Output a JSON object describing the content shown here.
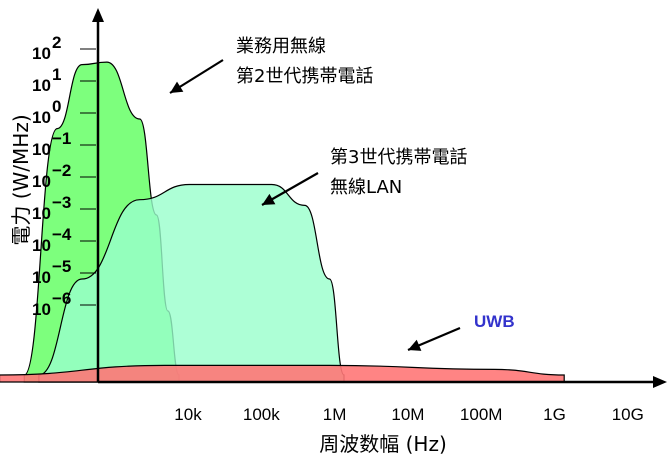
{
  "chart_data": {
    "type": "area",
    "xlabel": "周波数幅 (Hz)",
    "ylabel": "電力 (W/MHz)",
    "x_ticks": [
      "10k",
      "100k",
      "1M",
      "10M",
      "100M",
      "1G",
      "10G"
    ],
    "y_ticks": [
      {
        "base": "10",
        "exp": "2"
      },
      {
        "base": "10",
        "exp": "1"
      },
      {
        "base": "10",
        "exp": "0"
      },
      {
        "base": "10",
        "exp": "−1"
      },
      {
        "base": "10",
        "exp": "−2"
      },
      {
        "base": "10",
        "exp": "−3"
      },
      {
        "base": "10",
        "exp": "−4"
      },
      {
        "base": "10",
        "exp": "−5"
      },
      {
        "base": "10",
        "exp": "−6"
      }
    ],
    "x_scale": "log",
    "y_scale": "log",
    "grid": false,
    "annotations": [
      {
        "lines": [
          "業務用無線",
          "第2世代携帯電話"
        ],
        "color": "#000000"
      },
      {
        "lines": [
          "第3世代携帯電話",
          "無線LAN"
        ],
        "color": "#000000"
      },
      {
        "lines": [
          "UWB"
        ],
        "color": "#3333cc"
      }
    ],
    "series": [
      {
        "fill": "#66ff66",
        "opacity": 0.85,
        "points": [
          [
            200,
            1e-08
          ],
          [
            500,
            0.5
          ],
          [
            1000,
            50
          ],
          [
            2000,
            60
          ],
          [
            5000,
            1
          ],
          [
            8000,
            0.001
          ],
          [
            11000,
            1e-06
          ],
          [
            15000,
            1e-08
          ]
        ]
      },
      {
        "fill": "#99ffcc",
        "opacity": 0.8,
        "points": [
          [
            300,
            1e-08
          ],
          [
            1000,
            1e-05
          ],
          [
            5000,
            0.003
          ],
          [
            20000,
            0.009
          ],
          [
            200000,
            0.009
          ],
          [
            500000,
            0.002
          ],
          [
            1000000,
            1e-05
          ],
          [
            1500000,
            1e-08
          ]
        ]
      },
      {
        "fill": "#ff7777",
        "opacity": 0.9,
        "points": [
          [
            100,
            1e-08
          ],
          [
            10000,
            2e-08
          ],
          [
            1000000,
            2e-08
          ],
          [
            100000000,
            1.5e-08
          ],
          [
            700000000,
            1e-08
          ]
        ]
      }
    ]
  }
}
